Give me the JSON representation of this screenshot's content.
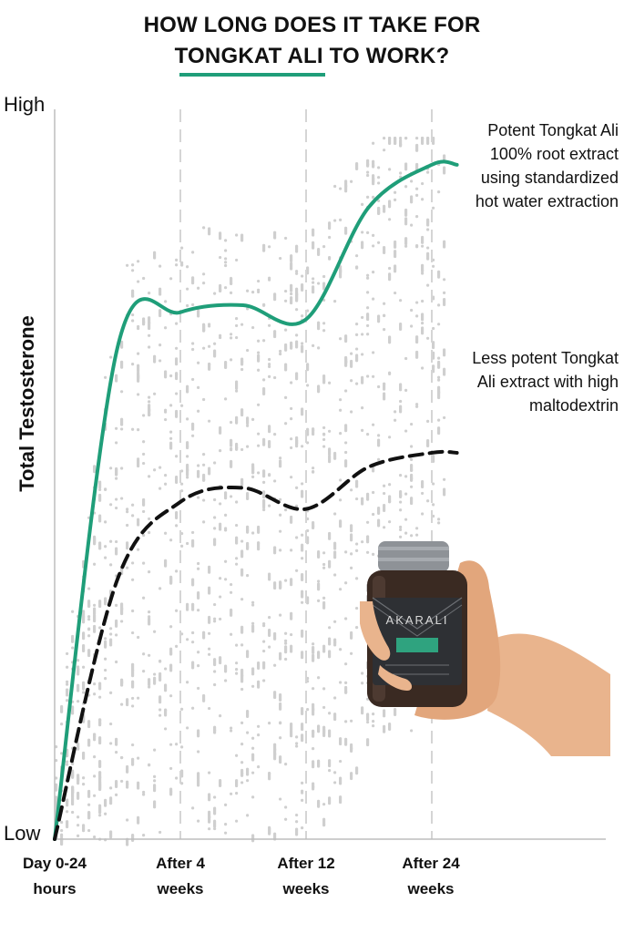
{
  "header": {
    "title_line1": "HOW LONG DOES IT TAKE FOR",
    "title_line2": "TONGKAT ALI TO WORK?"
  },
  "colors": {
    "accent": "#1f9e79",
    "dots": "#cfcfcf",
    "gridline": "#d5d5d5"
  },
  "chart_data": {
    "type": "line",
    "ylabel": "Total Testosterone",
    "y_tick_labels": {
      "high": "High",
      "low": "Low"
    },
    "ylim": [
      0,
      100
    ],
    "grid": "vertical dashed",
    "categories": [
      {
        "line1": "Day 0-24",
        "line2": "hours"
      },
      {
        "line1": "After 4",
        "line2": "weeks"
      },
      {
        "line1": "After 12",
        "line2": "weeks"
      },
      {
        "line1": "After 24",
        "line2": "weeks"
      }
    ],
    "series": [
      {
        "style": "solid-green",
        "label_lines": [
          "Potent Tongkat Ali",
          "100% root extract",
          "using standardized",
          "hot water extraction"
        ],
        "points": [
          [
            0,
            0
          ],
          [
            0.5,
            70
          ],
          [
            1,
            75
          ],
          [
            1.5,
            76
          ],
          [
            2,
            74
          ],
          [
            2.5,
            90
          ],
          [
            3,
            96
          ],
          [
            3.2,
            96
          ]
        ]
      },
      {
        "style": "dashed-black",
        "label_lines": [
          "Less potent Tongkat",
          "Ali extract with high",
          "maltodextrin"
        ],
        "points": [
          [
            0,
            0
          ],
          [
            0.5,
            37
          ],
          [
            1,
            48
          ],
          [
            1.5,
            50
          ],
          [
            2,
            47
          ],
          [
            2.5,
            53
          ],
          [
            3,
            55
          ],
          [
            3.2,
            55
          ]
        ]
      }
    ]
  },
  "product": {
    "brand": "AKARALI"
  }
}
